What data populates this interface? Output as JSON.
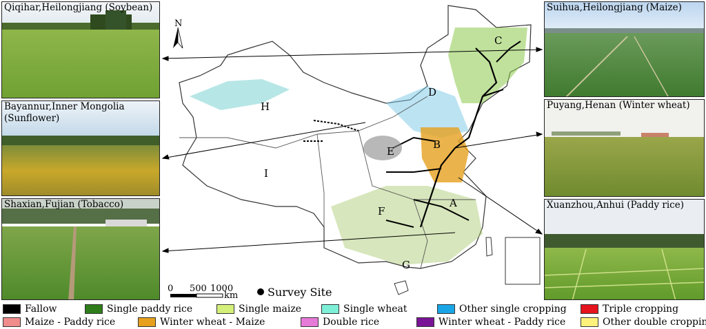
{
  "photos": {
    "qiqihar": "Qiqihar,Heilongjiang (Soybean)",
    "bayannur": "Bayannur,Inner Mongolia\n(Sunflower)",
    "shaxian": "Shaxian,Fujian (Tobacco)",
    "suihua": "Suihua,Heilongjiang (Maize)",
    "puyang": "Puyang,Henan (Winter wheat)",
    "xuanzhou": "Xuanzhou,Anhui (Paddy rice)"
  },
  "map": {
    "north": "N",
    "regions": [
      "A",
      "B",
      "C",
      "D",
      "E",
      "F",
      "G",
      "H",
      "I"
    ],
    "scale_ticks": [
      "0",
      "500",
      "1000"
    ],
    "scale_unit": "km",
    "survey_label": "Survey Site"
  },
  "legend": [
    {
      "label": "Fallow",
      "color": "#000000"
    },
    {
      "label": "Single paddy rice",
      "color": "#2e7d1a"
    },
    {
      "label": "Single maize",
      "color": "#d4f07a"
    },
    {
      "label": "Single wheat",
      "color": "#7ff0d8"
    },
    {
      "label": "Other single cropping",
      "color": "#1aa6e6"
    },
    {
      "label": "Triple cropping",
      "color": "#e6141e"
    },
    {
      "label": "Maize - Paddy rice",
      "color": "#f08c8c"
    },
    {
      "label": "Winter wheat - Maize",
      "color": "#e6a01e"
    },
    {
      "label": "Double rice",
      "color": "#e67ad8"
    },
    {
      "label": "Winter wheat - Paddy rice",
      "color": "#7a1496"
    },
    {
      "label": "Other double cropping",
      "color": "#fff27a"
    }
  ]
}
